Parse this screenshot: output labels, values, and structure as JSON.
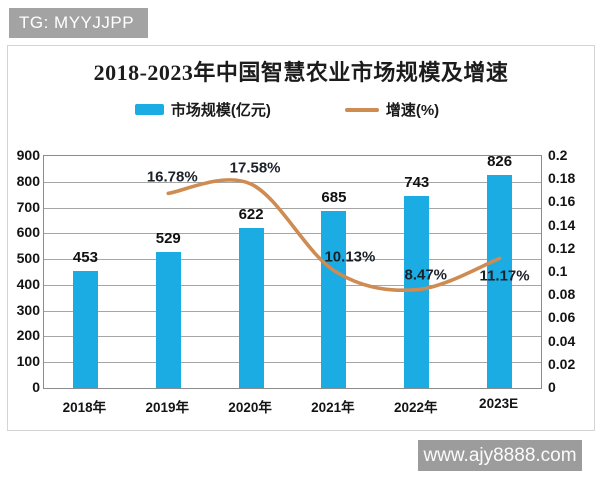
{
  "watermarks": {
    "top_left": "TG: MYYJJPP",
    "bottom_right": "www.ajy8888.com"
  },
  "chart_data": {
    "type": "bar+line",
    "title": "2018-2023年中国智慧农业市场规模及增速",
    "categories": [
      "2018年",
      "2019年",
      "2020年",
      "2021年",
      "2022年",
      "2023E"
    ],
    "series": [
      {
        "name": "市场规模(亿元)",
        "type": "bar",
        "axis": "left",
        "color": "#1aace3",
        "values": [
          453,
          529,
          622,
          685,
          743,
          826
        ],
        "value_labels": [
          "453",
          "529",
          "622",
          "685",
          "743",
          "826"
        ]
      },
      {
        "name": "增速(%)",
        "type": "line",
        "axis": "right",
        "color": "#ce8b52",
        "categories": [
          "2019年",
          "2020年",
          "2021年",
          "2022年",
          "2023E"
        ],
        "values": [
          0.1678,
          0.1758,
          0.1013,
          0.0847,
          0.1117
        ],
        "value_labels": [
          "16.78%",
          "17.58%",
          "10.13%",
          "8.47%",
          "11.17%"
        ]
      }
    ],
    "left_axis": {
      "min": 0,
      "max": 900,
      "step": 100,
      "ticks": [
        "900",
        "800",
        "700",
        "600",
        "500",
        "400",
        "300",
        "200",
        "100",
        "0"
      ]
    },
    "right_axis": {
      "min": 0,
      "max": 0.2,
      "step": 0.02,
      "ticks": [
        "0.2",
        "0.18",
        "0.16",
        "0.14",
        "0.12",
        "0.1",
        "0.08",
        "0.06",
        "0.04",
        "0.02",
        "0"
      ]
    },
    "legend_position": "top",
    "grid": true
  }
}
